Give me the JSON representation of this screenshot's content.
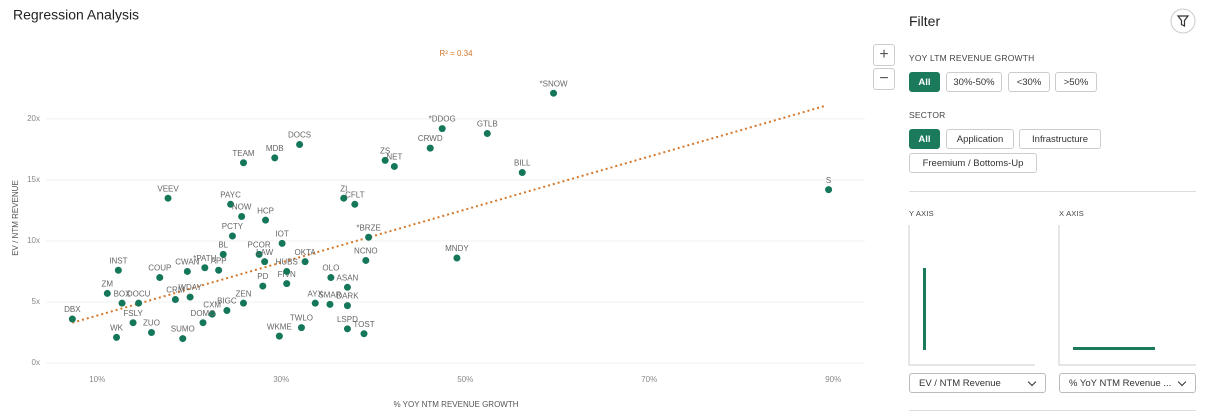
{
  "header": {
    "title": "Regression Analysis"
  },
  "zoom": [
    "+",
    "−"
  ],
  "chart_data": {
    "type": "scatter",
    "annotation": "R² = 0.34",
    "xlabel": "% YOY NTM REVENUE GROWTH",
    "ylabel": "EV / NTM REVENUE",
    "color": "#15775a",
    "point_labels": [
      "*SNOW",
      "*DDOG",
      "GTLB",
      "CRWD",
      "DOCS",
      "MDB",
      "TEAM",
      "ZS",
      "NET",
      "BILL",
      "S",
      "VEEV",
      "ZI",
      "CFLT",
      "PAYC",
      "NOW",
      "HCP",
      "PCTY",
      "*BRZE",
      "IOT",
      "BL",
      "PCOR",
      "NCNO",
      "MNDY",
      "INST",
      "COUP",
      "CWAN",
      "*PATH",
      "APP",
      "OKTA",
      "LAW",
      "OLO",
      "ASAN",
      "AYX",
      "SMAR",
      "DARK",
      "PD",
      "ZEN",
      "BIGC",
      "CXM",
      "DOMO",
      "WDAY",
      "CRM",
      "ZM",
      "BOX",
      "DOCU",
      "FSLY",
      "ZUO",
      "WK",
      "SUMO",
      "WKME",
      "TWLO",
      "LSPD",
      "TOST",
      "DBX",
      "FIVN",
      "HUBS"
    ],
    "x": [
      59.6,
      47.5,
      52.4,
      46.2,
      32.0,
      29.3,
      25.9,
      41.3,
      42.3,
      56.2,
      89.5,
      17.7,
      36.8,
      38.0,
      24.5,
      25.7,
      28.3,
      24.7,
      39.5,
      30.1,
      23.7,
      27.6,
      39.2,
      49.1,
      12.3,
      16.8,
      19.8,
      21.7,
      23.2,
      32.6,
      28.2,
      35.4,
      37.2,
      33.7,
      35.3,
      37.2,
      28.0,
      25.9,
      24.1,
      22.5,
      21.5,
      20.1,
      18.5,
      11.1,
      12.7,
      14.5,
      13.9,
      15.9,
      12.1,
      19.3,
      29.8,
      32.2,
      37.2,
      39.0,
      7.3,
      30.6,
      30.6
    ],
    "values": [
      22.1,
      19.2,
      18.8,
      17.6,
      17.9,
      16.8,
      16.4,
      16.6,
      16.1,
      15.6,
      14.2,
      13.5,
      13.5,
      13.0,
      13.0,
      12.0,
      11.7,
      10.4,
      10.3,
      9.8,
      8.9,
      8.9,
      8.4,
      8.6,
      7.6,
      7.0,
      7.5,
      7.8,
      7.6,
      8.3,
      8.3,
      7.0,
      6.2,
      4.9,
      4.8,
      4.7,
      6.3,
      4.9,
      4.3,
      4.0,
      3.3,
      5.4,
      5.2,
      5.7,
      4.9,
      4.9,
      3.3,
      2.5,
      2.1,
      2.0,
      2.2,
      2.9,
      2.8,
      2.4,
      3.6,
      6.5,
      7.5
    ],
    "trendline": {
      "color": "#d4782b",
      "x": [
        7.3,
        89.3
      ],
      "values": [
        3.3,
        21.1
      ]
    },
    "xlim": [
      4,
      94
    ],
    "ylim": [
      0,
      24
    ],
    "xticks": [
      {
        "value": 10,
        "label": "10%"
      },
      {
        "value": 30,
        "label": "30%"
      },
      {
        "value": 50,
        "label": "50%"
      },
      {
        "value": 70,
        "label": "70%"
      },
      {
        "value": 90,
        "label": "90%"
      }
    ],
    "yticks": [
      {
        "value": 0,
        "label": "0x"
      },
      {
        "value": 5,
        "label": "5x"
      },
      {
        "value": 10,
        "label": "10x"
      },
      {
        "value": 15,
        "label": "15x"
      },
      {
        "value": 20,
        "label": "20x"
      }
    ],
    "grid": true
  },
  "filter": {
    "title": "Filter",
    "groups": [
      {
        "label": "YOY LTM REVENUE GROWTH",
        "options": [
          "All",
          "30%-50%",
          "<30%",
          ">50%"
        ]
      },
      {
        "label": "SECTOR",
        "options": [
          "All",
          "Application",
          "Infrastructure",
          "Freemium / Bottoms-Up"
        ]
      }
    ],
    "axes": [
      {
        "label": "Y AXIS",
        "select": "EV / NTM Revenue"
      },
      {
        "label": "X AXIS",
        "select": "% YoY NTM Revenue ..."
      }
    ]
  }
}
